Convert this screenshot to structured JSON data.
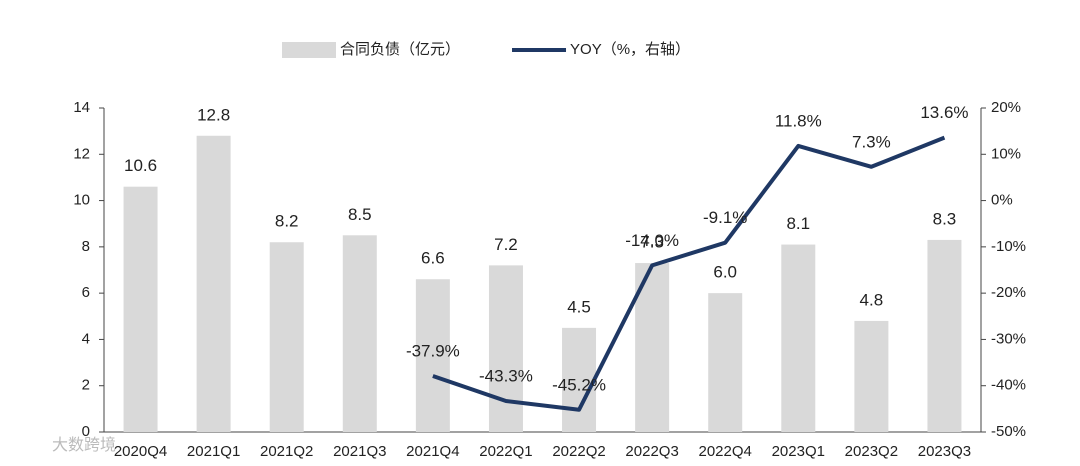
{
  "chart_data": {
    "type": "bar-line",
    "categories": [
      "2020Q4",
      "2021Q1",
      "2021Q2",
      "2021Q3",
      "2021Q4",
      "2022Q1",
      "2022Q2",
      "2022Q3",
      "2022Q4",
      "2023Q1",
      "2023Q2",
      "2023Q3"
    ],
    "series": [
      {
        "name": "合同负债（亿元）",
        "type": "bar",
        "color": "#d9d9d9",
        "axis": "y",
        "values": [
          10.6,
          12.8,
          8.2,
          8.5,
          6.6,
          7.2,
          4.5,
          7.3,
          6.0,
          8.1,
          4.8,
          8.3
        ],
        "value_labels": [
          "10.6",
          "12.8",
          "8.2",
          "8.5",
          "6.6",
          "7.2",
          "4.5",
          "7.3",
          "6.0",
          "8.1",
          "4.8",
          "8.3"
        ]
      },
      {
        "name": "YOY（%，右轴）",
        "type": "line",
        "color": "#1f3864",
        "axis": "y2",
        "values": [
          null,
          null,
          null,
          null,
          -37.9,
          -43.3,
          -45.2,
          -14.0,
          -9.1,
          11.8,
          7.3,
          13.6
        ],
        "value_labels": [
          null,
          null,
          null,
          null,
          "-37.9%",
          "-43.3%",
          "-45.2%",
          "-14.0%",
          "-9.1%",
          "11.8%",
          "7.3%",
          "13.6%"
        ]
      }
    ],
    "ylim": [
      0,
      14
    ],
    "yticks": [
      0,
      2,
      4,
      6,
      8,
      10,
      12,
      14
    ],
    "y2lim": [
      -50,
      20
    ],
    "y2ticks": [
      {
        "value": -50,
        "label": "-50%"
      },
      {
        "value": -40,
        "label": "-40%"
      },
      {
        "value": -30,
        "label": "-30%"
      },
      {
        "value": -20,
        "label": "-20%"
      },
      {
        "value": -10,
        "label": "-10%"
      },
      {
        "value": 0,
        "label": "0%"
      },
      {
        "value": 10,
        "label": "10%"
      },
      {
        "value": 20,
        "label": "20%"
      }
    ],
    "legend": "top",
    "watermark": "大数跨境"
  }
}
